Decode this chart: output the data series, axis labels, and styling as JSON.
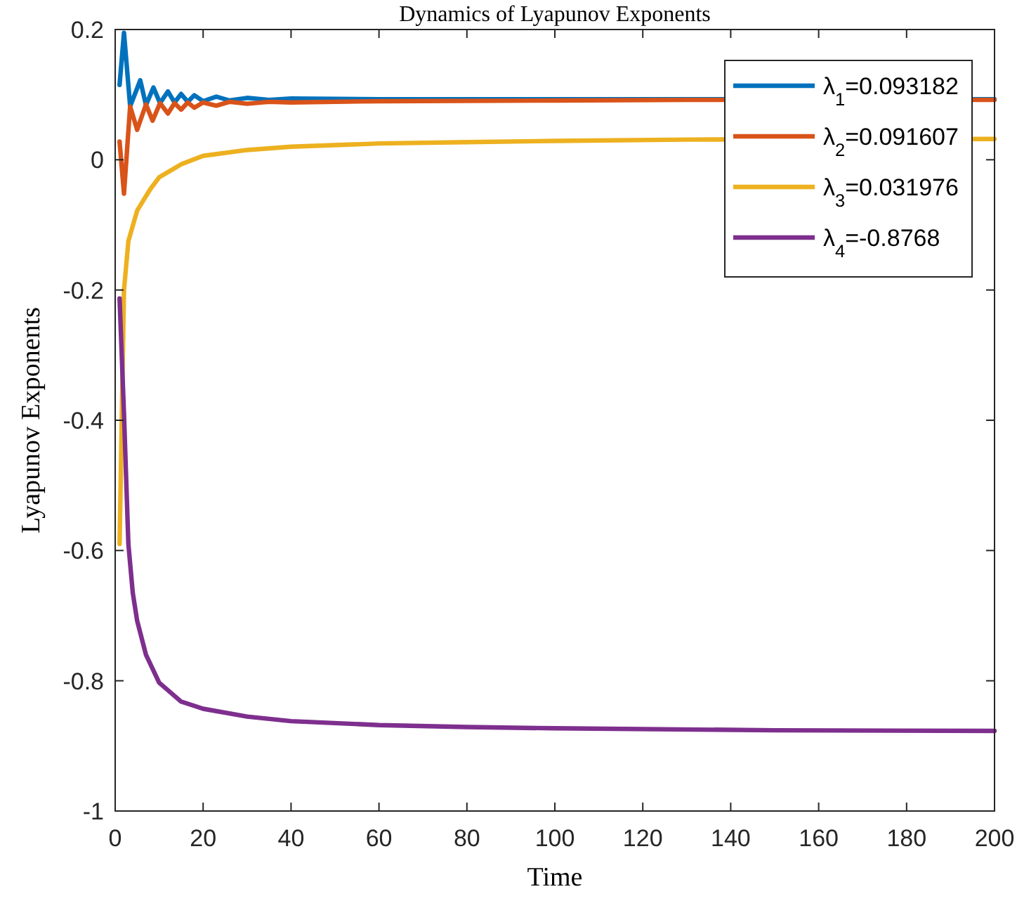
{
  "chart_data": {
    "type": "line",
    "title": "Dynamics of Lyapunov Exponents",
    "xlabel": "Time",
    "ylabel": "Lyapunov Exponents",
    "xlim": [
      0,
      200
    ],
    "xticks": [
      0,
      20,
      40,
      60,
      80,
      100,
      120,
      140,
      160,
      180,
      200
    ],
    "ylim": [
      -1,
      0.2
    ],
    "yticks": [
      -1,
      -0.8,
      -0.6,
      -0.4,
      -0.2,
      0,
      0.2
    ],
    "grid": false,
    "legend": "top right",
    "line_style": "solid",
    "marker": "none",
    "series": [
      {
        "name": "λ$_{1}$=0.093182",
        "color": "#0072bd",
        "x": [
          1,
          2,
          3.4,
          5.7,
          7,
          8.7,
          10.2,
          12,
          13.5,
          15,
          16.5,
          18,
          20,
          23,
          26,
          30,
          35,
          40,
          60,
          100,
          130,
          200
        ],
        "values": [
          0.115,
          0.195,
          0.082,
          0.122,
          0.084,
          0.111,
          0.087,
          0.105,
          0.088,
          0.101,
          0.089,
          0.099,
          0.09,
          0.097,
          0.091,
          0.095,
          0.092,
          0.094,
          0.093,
          0.093,
          0.093,
          0.093
        ]
      },
      {
        "name": "λ$_{2}$=0.091607",
        "color": "#d95319",
        "x": [
          1,
          2,
          3.4,
          5,
          7,
          8.5,
          10.2,
          12,
          13.5,
          15,
          16.5,
          18,
          20,
          23,
          26,
          30,
          35,
          40,
          60,
          100,
          130,
          200
        ],
        "values": [
          0.028,
          -0.052,
          0.082,
          0.046,
          0.085,
          0.06,
          0.087,
          0.071,
          0.087,
          0.077,
          0.088,
          0.08,
          0.088,
          0.083,
          0.089,
          0.086,
          0.089,
          0.088,
          0.09,
          0.091,
          0.092,
          0.092
        ]
      },
      {
        "name": "λ$_{3}$=0.031976",
        "color": "#edb120",
        "x": [
          1,
          2,
          3,
          5,
          6,
          8,
          10,
          15,
          20,
          30,
          40,
          60,
          80,
          100,
          130,
          200
        ],
        "values": [
          -0.59,
          -0.2,
          -0.125,
          -0.078,
          -0.067,
          -0.045,
          -0.027,
          -0.007,
          0.006,
          0.015,
          0.02,
          0.025,
          0.027,
          0.029,
          0.031,
          0.032
        ]
      },
      {
        "name": "λ$_{4}$=-0.8768",
        "color": "#7e2f8e",
        "x": [
          1,
          2,
          3,
          4,
          5,
          7,
          10,
          15,
          20,
          30,
          40,
          60,
          80,
          100,
          150,
          200
        ],
        "values": [
          -0.213,
          -0.39,
          -0.59,
          -0.665,
          -0.708,
          -0.76,
          -0.803,
          -0.832,
          -0.843,
          -0.855,
          -0.862,
          -0.868,
          -0.871,
          -0.873,
          -0.876,
          -0.877
        ]
      }
    ]
  }
}
